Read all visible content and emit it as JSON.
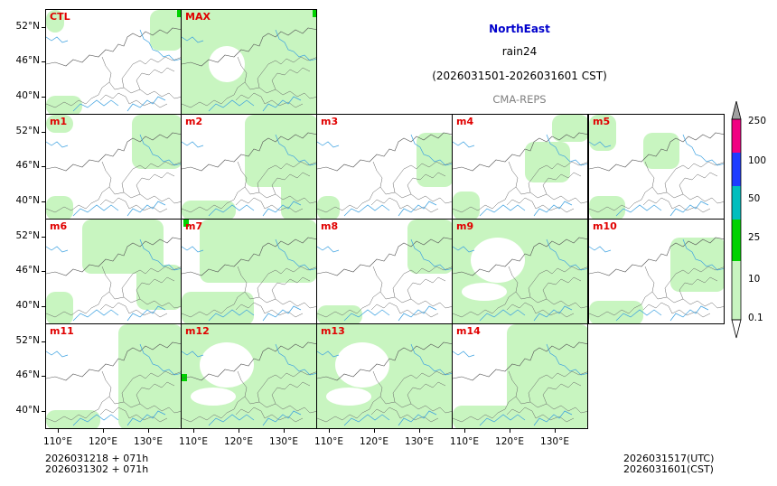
{
  "header": {
    "region": "NorthEast",
    "variable": "rain24",
    "period": "(2026031501-2026031601 CST)",
    "source": "CMA-REPS"
  },
  "panels": [
    "CTL",
    "MAX",
    "m1",
    "m2",
    "m3",
    "m4",
    "m5",
    "m6",
    "m7",
    "m8",
    "m9",
    "m10",
    "m11",
    "m12",
    "m13",
    "m14"
  ],
  "axes": {
    "lat_labels": [
      "52°N",
      "46°N",
      "40°N"
    ],
    "lon_labels": [
      "110°E",
      "120°E",
      "130°E"
    ]
  },
  "colorbar": {
    "levels": [
      "0.1",
      "10",
      "25",
      "50",
      "100",
      "250"
    ],
    "colors": [
      "#ffffff",
      "#c8f5c0",
      "#00d200",
      "#00bebe",
      "#1e3cff",
      "#f00082",
      "#a0a0a0"
    ]
  },
  "footer": {
    "init_line1": "2026031218  +  071h",
    "init_line2": "2026031302  +  071h",
    "valid_utc": "2026031517(UTC)",
    "valid_cst": "2026031601(CST)"
  }
}
